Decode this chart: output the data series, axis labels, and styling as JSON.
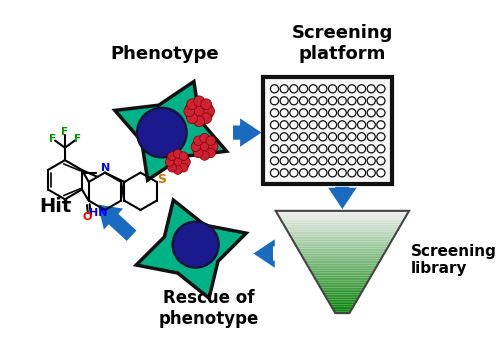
{
  "bg_color": "#ffffff",
  "text_phenotype": "Phenotype",
  "text_screening_platform": "Screening\nplatform",
  "text_screening_library": "Screening\nlibrary",
  "text_rescue": "Rescue of\nphenotype",
  "text_hit": "Hit",
  "arrow_color": "#1a6bbf",
  "cell_body_color": "#00b386",
  "cell_outline_color": "#111111",
  "nucleus_color": "#1a1a8c",
  "organelle_color": "#cc2222",
  "chem_N_color": "#0000ff",
  "chem_S_color": "#cc7700",
  "chem_O_color": "#ff0000",
  "chem_F_color": "#009900"
}
